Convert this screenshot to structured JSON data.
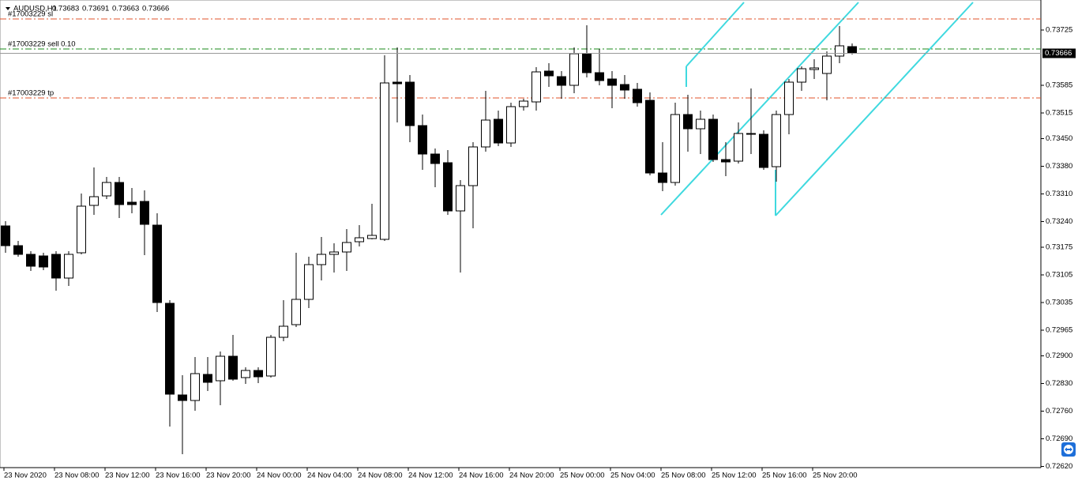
{
  "chart_data": {
    "type": "candlestick",
    "title": "AUDUSD,H1",
    "categories": [
      "23 Nov 2020",
      null,
      null,
      null,
      "23 Nov 08:00",
      null,
      null,
      null,
      "23 Nov 12:00",
      null,
      null,
      null,
      "23 Nov 16:00",
      null,
      null,
      null,
      "23 Nov 20:00",
      null,
      null,
      null,
      "24 Nov 00:00",
      null,
      null,
      null,
      "24 Nov 04:00",
      null,
      null,
      null,
      "24 Nov 08:00",
      null,
      null,
      null,
      "24 Nov 12:00",
      null,
      null,
      null,
      "24 Nov 16:00",
      null,
      null,
      null,
      "24 Nov 20:00",
      null,
      null,
      null,
      "25 Nov 00:00",
      null,
      null,
      null,
      "25 Nov 04:00",
      null,
      null,
      null,
      "25 Nov 08:00",
      null,
      null,
      null,
      "25 Nov 12:00",
      null,
      null,
      null,
      "25 Nov 16:00",
      null,
      null,
      null,
      "25 Nov 20:00",
      null,
      null,
      null
    ],
    "open": [
      0.73229,
      0.73179,
      0.73157,
      0.73153,
      0.73157,
      0.73097,
      0.73161,
      0.73281,
      0.73305,
      0.73339,
      0.73289,
      0.73291,
      0.73231,
      0.73033,
      0.72801,
      0.72787,
      0.72853,
      0.72837,
      0.72899,
      0.72845,
      0.72863,
      0.72849,
      0.72947,
      0.72979,
      0.73043,
      0.73131,
      0.73157,
      0.73163,
      0.73189,
      0.73197,
      0.73195,
      0.73593,
      0.73593,
      0.73483,
      0.73411,
      0.73389,
      0.73267,
      0.73331,
      0.73429,
      0.73499,
      0.73439,
      0.73531,
      0.73543,
      0.73621,
      0.73607,
      0.73585,
      0.73665,
      0.73617,
      0.73601,
      0.73587,
      0.73575,
      0.73547,
      0.73363,
      0.73339,
      0.73511,
      0.73475,
      0.73499,
      0.73397,
      0.73393,
      0.73463,
      0.73461,
      0.73379,
      0.73511,
      0.73593,
      0.73625,
      0.73615,
      0.73659,
      0.73683
    ],
    "high": [
      0.73241,
      0.73191,
      0.73165,
      0.73161,
      0.73165,
      0.73165,
      0.73311,
      0.73377,
      0.73353,
      0.73353,
      0.73325,
      0.73319,
      0.73261,
      0.73041,
      0.72851,
      0.72897,
      0.72897,
      0.72911,
      0.72953,
      0.72871,
      0.72871,
      0.72953,
      0.73041,
      0.73161,
      0.73151,
      0.73201,
      0.73185,
      0.73221,
      0.73231,
      0.73285,
      0.73661,
      0.73681,
      0.73611,
      0.73511,
      0.73425,
      0.73421,
      0.73345,
      0.73441,
      0.73571,
      0.73521,
      0.73541,
      0.73551,
      0.73631,
      0.73641,
      0.73621,
      0.73681,
      0.73737,
      0.73677,
      0.73621,
      0.73611,
      0.73591,
      0.73567,
      0.73441,
      0.73541,
      0.73561,
      0.73521,
      0.73511,
      0.73441,
      0.73491,
      0.73577,
      0.73471,
      0.73521,
      0.73601,
      0.73633,
      0.73651,
      0.73671,
      0.73735,
      0.73691
    ],
    "low": [
      0.73161,
      0.73151,
      0.73115,
      0.73117,
      0.73065,
      0.73077,
      0.73157,
      0.73257,
      0.73297,
      0.73249,
      0.73261,
      0.73155,
      0.73011,
      0.72721,
      0.72651,
      0.72761,
      0.72811,
      0.72775,
      0.72837,
      0.72829,
      0.72831,
      0.72845,
      0.72937,
      0.72973,
      0.73021,
      0.73091,
      0.73111,
      0.73115,
      0.73177,
      0.73195,
      0.73191,
      0.73491,
      0.73441,
      0.73371,
      0.73327,
      0.73257,
      0.73111,
      0.73223,
      0.73417,
      0.73431,
      0.73429,
      0.73521,
      0.73521,
      0.73581,
      0.73551,
      0.73565,
      0.73605,
      0.73585,
      0.73527,
      0.73551,
      0.73531,
      0.73357,
      0.73317,
      0.73331,
      0.73417,
      0.73411,
      0.73391,
      0.73355,
      0.73387,
      0.73411,
      0.73371,
      0.73341,
      0.73461,
      0.73571,
      0.73601,
      0.73547,
      0.73641,
      0.73663
    ],
    "close": [
      0.73179,
      0.73157,
      0.73127,
      0.73125,
      0.73097,
      0.73157,
      0.73279,
      0.73303,
      0.73339,
      0.73283,
      0.73283,
      0.73233,
      0.73035,
      0.72803,
      0.72787,
      0.72855,
      0.72833,
      0.72899,
      0.72841,
      0.72863,
      0.72847,
      0.72947,
      0.72975,
      0.73043,
      0.73131,
      0.73157,
      0.73163,
      0.73187,
      0.73199,
      0.73205,
      0.73591,
      0.73589,
      0.73483,
      0.73411,
      0.73387,
      0.73267,
      0.73331,
      0.73429,
      0.73497,
      0.73439,
      0.73531,
      0.73545,
      0.73619,
      0.73609,
      0.73585,
      0.73665,
      0.73617,
      0.73597,
      0.73585,
      0.73573,
      0.73541,
      0.73363,
      0.73339,
      0.73511,
      0.73475,
      0.73499,
      0.73397,
      0.73391,
      0.73463,
      0.73461,
      0.73377,
      0.73511,
      0.73593,
      0.73627,
      0.73629,
      0.73659,
      0.73685,
      0.73666
    ],
    "ylim": [
      0.72617,
      0.73795
    ],
    "yticks": [
      0.73725,
      0.73585,
      0.73515,
      {
        "value": 0.7345,
        "label": "0.73450"
      },
      {
        "value": 0.7338,
        "label": "0.73380"
      },
      {
        "value": 0.7331,
        "label": "0.73310"
      },
      {
        "value": 0.7324,
        "label": "0.73240"
      },
      0.73175,
      0.73105,
      0.73035,
      0.72965,
      {
        "value": 0.729,
        "label": "0.72900"
      },
      {
        "value": 0.7283,
        "label": "0.72830"
      },
      {
        "value": 0.7276,
        "label": "0.72760"
      },
      {
        "value": 0.7269,
        "label": "0.72690"
      },
      {
        "value": 0.7262,
        "label": "0.72620"
      }
    ],
    "levels": [
      {
        "label": "#17003229 sl",
        "value": 0.73753,
        "color": "#e0502a"
      },
      {
        "label": "#17003229 sell 0.10",
        "value": 0.73677,
        "color": "#1a8a1a"
      },
      {
        "label": "#17003229 tp",
        "value": 0.73553,
        "color": "#e0502a"
      }
    ],
    "last_price": 0.73666,
    "bull_color": "#ffffff",
    "bear_color": "#000000"
  }
}
